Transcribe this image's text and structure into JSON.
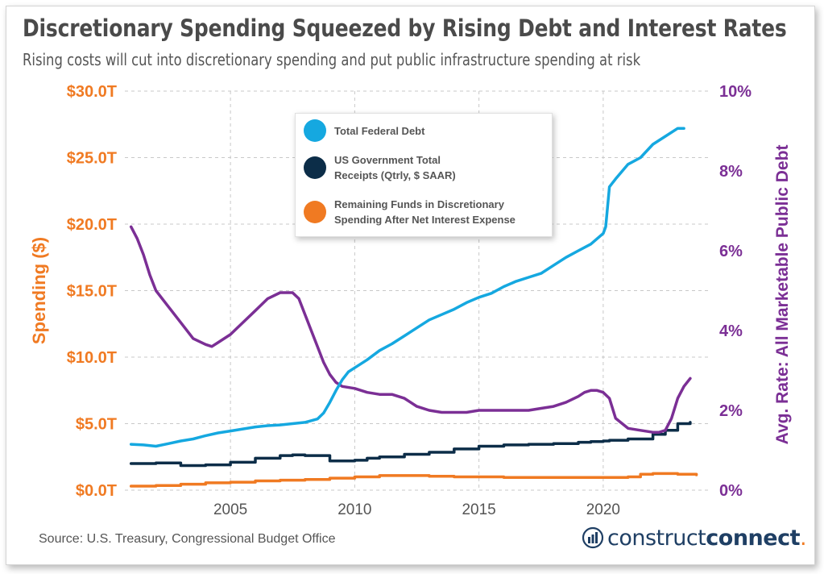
{
  "title": "Discretionary Spending Squeezed by Rising Debt and Interest Rates",
  "subtitle": "Rising costs will cut into discretionary spending and put public infrastructure spending at risk",
  "source": "Source: U.S. Treasury, Congressional Budget Office",
  "brand": {
    "light": "construct",
    "bold": "connect",
    "mark": "."
  },
  "colors": {
    "debt": "#15a8e0",
    "receipts": "#0c2d48",
    "discretionary": "#f07a22",
    "rate": "#7b2f95",
    "left_axis": "#f07a22",
    "right_axis": "#7b2f95",
    "grid": "#c8c8c8"
  },
  "legend": [
    {
      "label": "Total Federal Debt",
      "color": "#15a8e0"
    },
    {
      "label": "US Government Total Receipts (Qtrly, $ SAAR)",
      "color": "#0c2d48"
    },
    {
      "label": "Remaining Funds in Discretionary Spending After Net Interest Expense",
      "color": "#f07a22"
    }
  ],
  "chart_data": {
    "type": "line",
    "xlim": [
      2000.75,
      2024.25
    ],
    "x_ticks": [
      2005,
      2010,
      2015,
      2020
    ],
    "x_tick_labels": [
      "2005",
      "2010",
      "2015",
      "2020"
    ],
    "y_left": {
      "label": "Spending ($)",
      "range": [
        0,
        30
      ],
      "ticks": [
        0,
        5,
        10,
        15,
        20,
        25,
        30
      ],
      "tick_labels": [
        "$0.0T",
        "$5.0T",
        "$10.0T",
        "$15.0T",
        "$20.0T",
        "$25.0T",
        "$30.0T"
      ]
    },
    "y_right": {
      "label": "Avg. Rate: All Marketable Public Debt",
      "range": [
        0,
        10
      ],
      "ticks": [
        0,
        2,
        4,
        6,
        8,
        10
      ],
      "tick_labels": [
        "0%",
        "2%",
        "4%",
        "6%",
        "8%",
        "10%"
      ]
    },
    "grid": "dashed",
    "legend_position": "top-center",
    "series": [
      {
        "name": "Total Federal Debt",
        "axis": "left",
        "x": [
          2001,
          2001.5,
          2002,
          2002.5,
          2003,
          2003.5,
          2004,
          2004.5,
          2005,
          2005.5,
          2006,
          2006.5,
          2007,
          2007.5,
          2008,
          2008.5,
          2008.75,
          2009,
          2009.25,
          2009.5,
          2009.75,
          2010,
          2010.5,
          2011,
          2011.5,
          2012,
          2012.5,
          2013,
          2013.5,
          2014,
          2014.5,
          2015,
          2015.5,
          2016,
          2016.5,
          2017,
          2017.5,
          2018,
          2018.5,
          2019,
          2019.5,
          2020,
          2020.1,
          2020.25,
          2020.5,
          2021,
          2021.5,
          2022,
          2022.5,
          2023,
          2023.25
        ],
        "y": [
          3.45,
          3.4,
          3.3,
          3.5,
          3.7,
          3.85,
          4.1,
          4.3,
          4.45,
          4.6,
          4.75,
          4.85,
          4.9,
          5.0,
          5.1,
          5.35,
          5.8,
          6.6,
          7.5,
          8.3,
          8.9,
          9.2,
          9.8,
          10.5,
          11.0,
          11.6,
          12.2,
          12.8,
          13.2,
          13.6,
          14.1,
          14.5,
          14.8,
          15.3,
          15.7,
          16.0,
          16.3,
          16.9,
          17.5,
          18.0,
          18.5,
          19.3,
          19.8,
          22.8,
          23.4,
          24.5,
          25.0,
          26.0,
          26.6,
          27.2,
          27.2
        ]
      },
      {
        "name": "US Government Total Receipts (Qtrly, $ SAAR)",
        "axis": "left",
        "x": [
          2001,
          2002,
          2003,
          2004,
          2005,
          2006,
          2007,
          2007.5,
          2008,
          2009,
          2010,
          2010.5,
          2011,
          2012,
          2013,
          2014,
          2015,
          2016,
          2017,
          2018,
          2019,
          2019.5,
          2020,
          2020.25,
          2021,
          2022,
          2022.5,
          2023,
          2023.5
        ],
        "y": [
          2.0,
          2.05,
          1.85,
          1.9,
          2.1,
          2.4,
          2.6,
          2.65,
          2.6,
          2.2,
          2.25,
          2.4,
          2.5,
          2.7,
          2.85,
          3.1,
          3.3,
          3.4,
          3.45,
          3.5,
          3.6,
          3.65,
          3.7,
          3.75,
          3.85,
          4.2,
          4.5,
          5.0,
          5.1
        ]
      },
      {
        "name": "Remaining Funds in Discretionary Spending After Net Interest Expense",
        "axis": "left",
        "x": [
          2001,
          2002,
          2003,
          2004,
          2005,
          2006,
          2007,
          2008,
          2009,
          2010,
          2011,
          2012,
          2013,
          2014,
          2015,
          2016,
          2017,
          2018,
          2019,
          2020,
          2021,
          2021.5,
          2022,
          2023,
          2023.75
        ],
        "y": [
          0.3,
          0.35,
          0.45,
          0.55,
          0.6,
          0.7,
          0.75,
          0.8,
          0.9,
          1.0,
          1.1,
          1.1,
          1.05,
          1.0,
          1.0,
          0.95,
          0.95,
          0.95,
          0.95,
          0.95,
          1.0,
          1.2,
          1.25,
          1.2,
          1.15
        ]
      },
      {
        "name": "Avg. Rate: All Marketable Public Debt",
        "axis": "right",
        "x": [
          2001,
          2001.25,
          2001.5,
          2001.75,
          2002,
          2002.5,
          2003,
          2003.5,
          2004,
          2004.25,
          2004.5,
          2005,
          2005.5,
          2006,
          2006.5,
          2007,
          2007.5,
          2007.75,
          2008,
          2008.25,
          2008.5,
          2008.75,
          2009,
          2009.25,
          2009.5,
          2010,
          2010.5,
          2011,
          2011.5,
          2012,
          2012.5,
          2013,
          2013.5,
          2014,
          2014.5,
          2015,
          2015.5,
          2016,
          2016.5,
          2017,
          2017.5,
          2018,
          2018.5,
          2019,
          2019.25,
          2019.5,
          2019.75,
          2020,
          2020.25,
          2020.5,
          2021,
          2021.5,
          2022,
          2022.25,
          2022.5,
          2022.75,
          2023,
          2023.25,
          2023.5
        ],
        "y": [
          6.6,
          6.3,
          5.9,
          5.4,
          5.0,
          4.6,
          4.2,
          3.8,
          3.65,
          3.6,
          3.7,
          3.9,
          4.2,
          4.5,
          4.8,
          4.95,
          4.95,
          4.8,
          4.4,
          4.0,
          3.6,
          3.2,
          2.9,
          2.7,
          2.6,
          2.55,
          2.45,
          2.4,
          2.4,
          2.3,
          2.1,
          2.0,
          1.95,
          1.95,
          1.95,
          2.0,
          2.0,
          2.0,
          2.0,
          2.0,
          2.05,
          2.1,
          2.2,
          2.35,
          2.45,
          2.5,
          2.5,
          2.45,
          2.3,
          1.8,
          1.55,
          1.5,
          1.45,
          1.45,
          1.5,
          1.8,
          2.3,
          2.6,
          2.8
        ]
      }
    ]
  }
}
